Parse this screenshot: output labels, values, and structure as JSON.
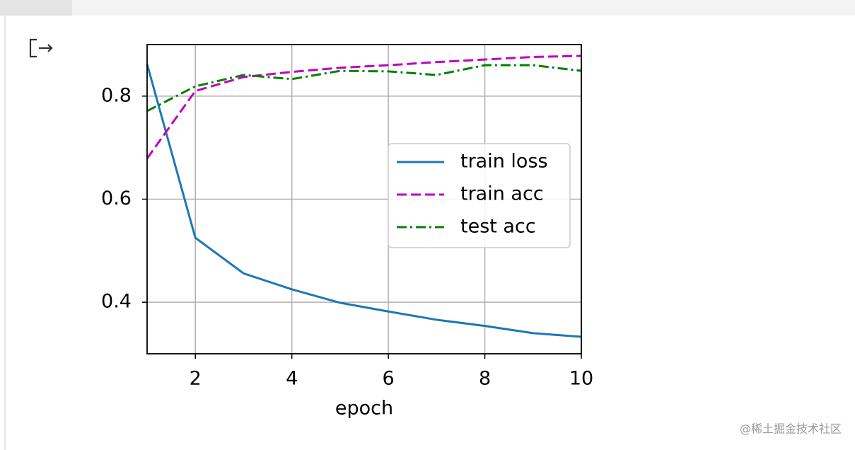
{
  "chart_data": {
    "type": "line",
    "x": [
      1,
      2,
      3,
      4,
      5,
      6,
      7,
      8,
      9,
      10
    ],
    "series": [
      {
        "name": "train loss",
        "color": "#1f77b4",
        "linestyle": "solid",
        "values": [
          0.862,
          0.525,
          0.456,
          0.425,
          0.399,
          0.382,
          0.366,
          0.354,
          0.34,
          0.333
        ]
      },
      {
        "name": "train acc",
        "color": "#bf00bf",
        "linestyle": "dashed",
        "values": [
          0.679,
          0.81,
          0.837,
          0.847,
          0.855,
          0.86,
          0.866,
          0.871,
          0.876,
          0.878
        ]
      },
      {
        "name": "test acc",
        "color": "#008000",
        "linestyle": "dashdot",
        "values": [
          0.771,
          0.819,
          0.841,
          0.833,
          0.849,
          0.848,
          0.841,
          0.86,
          0.86,
          0.849
        ]
      }
    ],
    "xlabel": "epoch",
    "xlim": [
      1,
      10
    ],
    "xticks": [
      2,
      4,
      6,
      8,
      10
    ],
    "ylim": [
      0.3,
      0.9
    ],
    "yticks": [
      0.4,
      0.6,
      0.8
    ],
    "grid": true,
    "legend": "center right"
  },
  "watermark": "@稀土掘金技术社区"
}
